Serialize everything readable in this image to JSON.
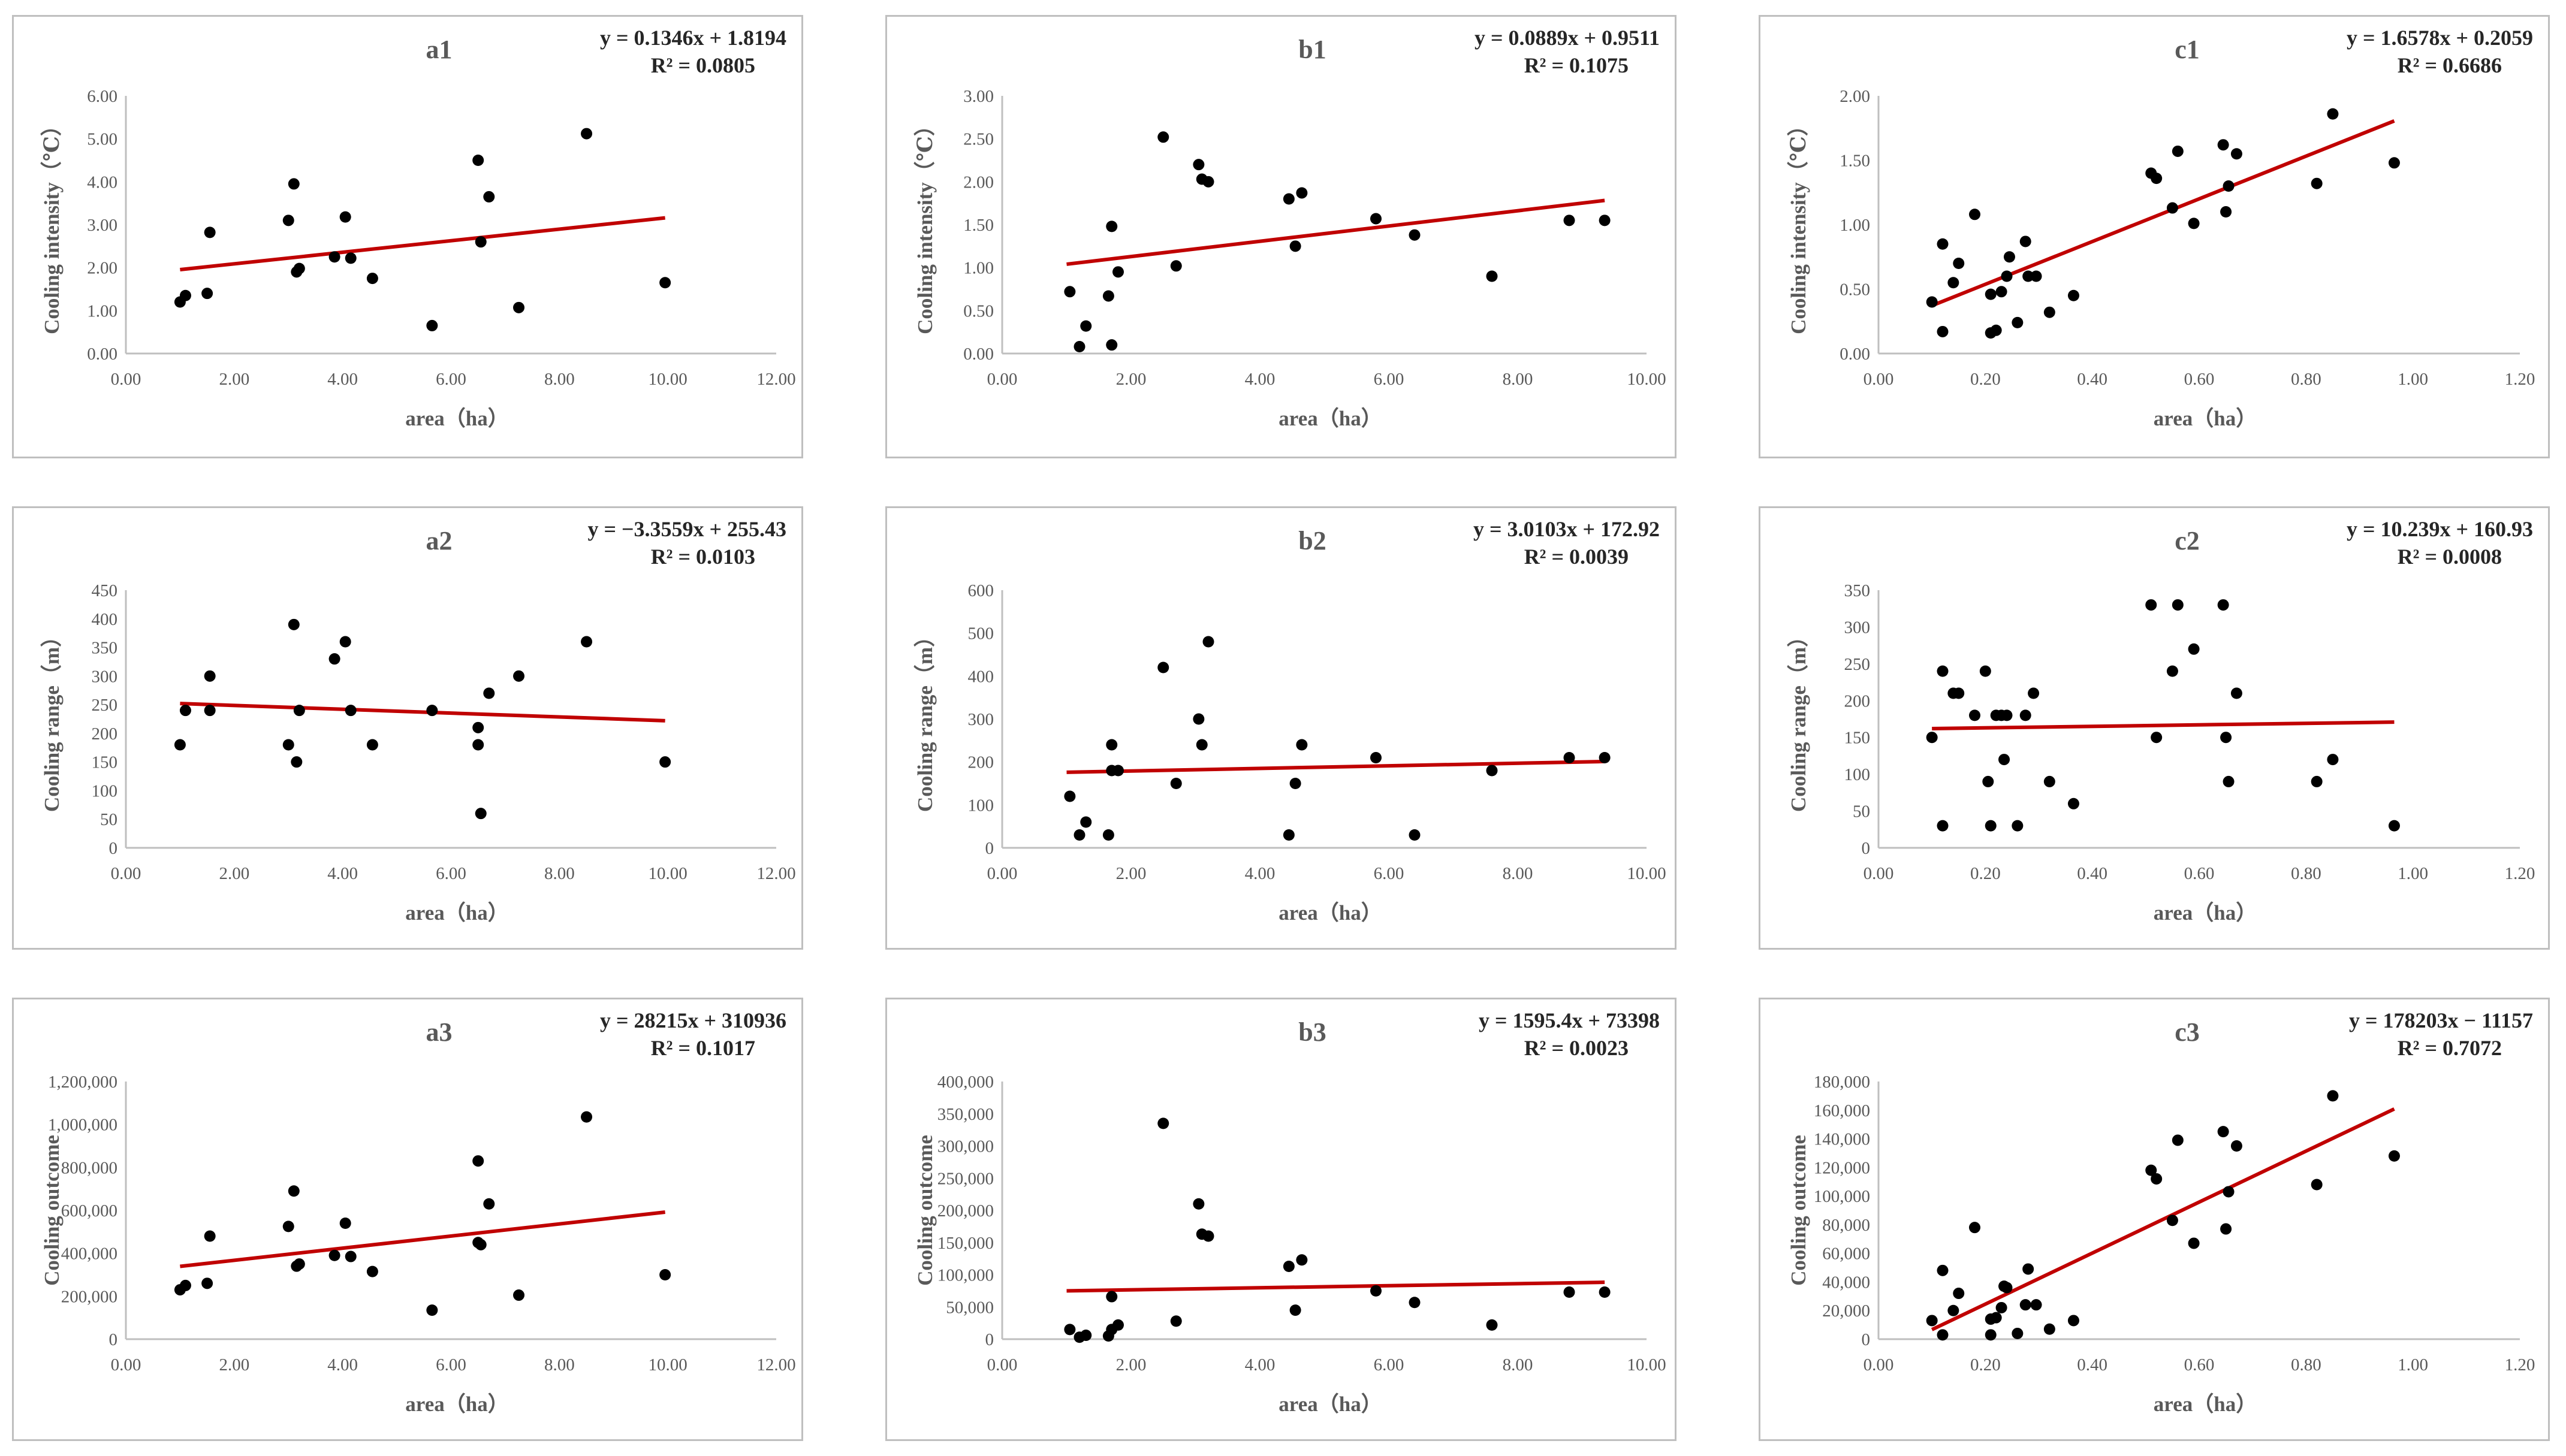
{
  "chart_data": [
    {
      "id": "a1",
      "type": "scatter",
      "title": "a1",
      "equation": "y = 0.1346x + 1.8194",
      "r2": "R² = 0.0805",
      "xlabel": "area（ha）",
      "ylabel": "Cooling intensity（℃）",
      "xlim": [
        0,
        12
      ],
      "ylim": [
        0,
        6
      ],
      "x_ticks": [
        "0.00",
        "2.00",
        "4.00",
        "6.00",
        "8.00",
        "10.00",
        "12.00"
      ],
      "y_ticks": [
        "0.00",
        "1.00",
        "2.00",
        "3.00",
        "4.00",
        "5.00",
        "6.00"
      ],
      "trend": {
        "slope": 0.1346,
        "intercept": 1.8194,
        "x_range": [
          1.0,
          9.95
        ]
      },
      "points": [
        [
          1.0,
          1.2
        ],
        [
          1.1,
          1.35
        ],
        [
          1.5,
          1.4
        ],
        [
          1.55,
          2.82
        ],
        [
          3.0,
          3.1
        ],
        [
          3.1,
          3.95
        ],
        [
          3.15,
          1.9
        ],
        [
          3.2,
          1.98
        ],
        [
          3.85,
          2.25
        ],
        [
          4.05,
          3.18
        ],
        [
          4.15,
          2.22
        ],
        [
          4.55,
          1.75
        ],
        [
          5.65,
          0.65
        ],
        [
          6.5,
          4.5
        ],
        [
          6.55,
          2.6
        ],
        [
          6.7,
          3.65
        ],
        [
          7.25,
          1.07
        ],
        [
          8.5,
          5.12
        ],
        [
          9.95,
          1.65
        ]
      ]
    },
    {
      "id": "b1",
      "type": "scatter",
      "title": "b1",
      "equation": "y = 0.0889x + 0.9511",
      "r2": "R² = 0.1075",
      "xlabel": "area（ha）",
      "ylabel": "Cooling intensity（℃）",
      "xlim": [
        0,
        10
      ],
      "ylim": [
        0,
        3
      ],
      "x_ticks": [
        "0.00",
        "2.00",
        "4.00",
        "6.00",
        "8.00",
        "10.00"
      ],
      "y_ticks": [
        "0.00",
        "0.50",
        "1.00",
        "1.50",
        "2.00",
        "2.50",
        "3.00"
      ],
      "trend": {
        "slope": 0.0889,
        "intercept": 0.9511,
        "x_range": [
          1.0,
          9.35
        ]
      },
      "points": [
        [
          1.05,
          0.72
        ],
        [
          1.2,
          0.08
        ],
        [
          1.3,
          0.32
        ],
        [
          1.65,
          0.67
        ],
        [
          1.7,
          0.1
        ],
        [
          1.7,
          1.48
        ],
        [
          1.8,
          0.95
        ],
        [
          2.5,
          2.52
        ],
        [
          2.7,
          1.02
        ],
        [
          3.05,
          2.2
        ],
        [
          3.1,
          2.03
        ],
        [
          3.2,
          2.0
        ],
        [
          4.45,
          1.8
        ],
        [
          4.55,
          1.25
        ],
        [
          4.65,
          1.87
        ],
        [
          5.8,
          1.57
        ],
        [
          6.4,
          1.38
        ],
        [
          7.6,
          0.9
        ],
        [
          8.8,
          1.55
        ],
        [
          9.35,
          1.55
        ]
      ]
    },
    {
      "id": "c1",
      "type": "scatter",
      "title": "c1",
      "equation": "y = 1.6578x + 0.2059",
      "r2": "R² = 0.6686",
      "xlabel": "area（ha）",
      "ylabel": "Cooling intensity（℃）",
      "xlim": [
        0,
        1.2
      ],
      "ylim": [
        0,
        2
      ],
      "x_ticks": [
        "0.00",
        "0.20",
        "0.40",
        "0.60",
        "0.80",
        "1.00",
        "1.20"
      ],
      "y_ticks": [
        "0.00",
        "0.50",
        "1.00",
        "1.50",
        "2.00"
      ],
      "trend": {
        "slope": 1.6578,
        "intercept": 0.2059,
        "x_range": [
          0.1,
          0.965
        ]
      },
      "points": [
        [
          0.1,
          0.4
        ],
        [
          0.12,
          0.85
        ],
        [
          0.12,
          0.17
        ],
        [
          0.14,
          0.55
        ],
        [
          0.15,
          0.7
        ],
        [
          0.18,
          1.08
        ],
        [
          0.21,
          0.46
        ],
        [
          0.21,
          0.16
        ],
        [
          0.22,
          0.18
        ],
        [
          0.23,
          0.48
        ],
        [
          0.24,
          0.6
        ],
        [
          0.245,
          0.75
        ],
        [
          0.26,
          0.24
        ],
        [
          0.275,
          0.87
        ],
        [
          0.28,
          0.6
        ],
        [
          0.295,
          0.6
        ],
        [
          0.32,
          0.32
        ],
        [
          0.365,
          0.45
        ],
        [
          0.51,
          1.4
        ],
        [
          0.52,
          1.36
        ],
        [
          0.55,
          1.13
        ],
        [
          0.56,
          1.57
        ],
        [
          0.59,
          1.01
        ],
        [
          0.645,
          1.62
        ],
        [
          0.65,
          1.1
        ],
        [
          0.655,
          1.3
        ],
        [
          0.67,
          1.55
        ],
        [
          0.82,
          1.32
        ],
        [
          0.85,
          1.86
        ],
        [
          0.965,
          1.48
        ]
      ]
    },
    {
      "id": "a2",
      "type": "scatter",
      "title": "a2",
      "equation": "y = −3.3559x + 255.43",
      "r2": "R² = 0.0103",
      "xlabel": "area（ha）",
      "ylabel": "Cooling range（m）",
      "xlim": [
        0,
        12
      ],
      "ylim": [
        0,
        450
      ],
      "x_ticks": [
        "0.00",
        "2.00",
        "4.00",
        "6.00",
        "8.00",
        "10.00",
        "12.00"
      ],
      "y_ticks": [
        "0",
        "50",
        "100",
        "150",
        "200",
        "250",
        "300",
        "350",
        "400",
        "450"
      ],
      "trend": {
        "slope": -3.3559,
        "intercept": 255.43,
        "x_range": [
          1.0,
          9.95
        ]
      },
      "points": [
        [
          1.0,
          180
        ],
        [
          1.1,
          240
        ],
        [
          1.55,
          300
        ],
        [
          1.55,
          240
        ],
        [
          3.0,
          180
        ],
        [
          3.1,
          390
        ],
        [
          3.15,
          150
        ],
        [
          3.2,
          240
        ],
        [
          3.85,
          330
        ],
        [
          4.05,
          360
        ],
        [
          4.15,
          240
        ],
        [
          4.55,
          180
        ],
        [
          5.65,
          240
        ],
        [
          6.5,
          210
        ],
        [
          6.5,
          180
        ],
        [
          6.55,
          60
        ],
        [
          6.7,
          270
        ],
        [
          7.25,
          300
        ],
        [
          8.5,
          360
        ],
        [
          9.95,
          150
        ]
      ]
    },
    {
      "id": "b2",
      "type": "scatter",
      "title": "b2",
      "equation": "y = 3.0103x + 172.92",
      "r2": "R² = 0.0039",
      "xlabel": "area（ha）",
      "ylabel": "Cooling range（m）",
      "xlim": [
        0,
        10
      ],
      "ylim": [
        0,
        600
      ],
      "x_ticks": [
        "0.00",
        "2.00",
        "4.00",
        "6.00",
        "8.00",
        "10.00"
      ],
      "y_ticks": [
        "0",
        "100",
        "200",
        "300",
        "400",
        "500",
        "600"
      ],
      "trend": {
        "slope": 3.0103,
        "intercept": 172.92,
        "x_range": [
          1.0,
          9.35
        ]
      },
      "points": [
        [
          1.05,
          120
        ],
        [
          1.2,
          30
        ],
        [
          1.3,
          60
        ],
        [
          1.65,
          30
        ],
        [
          1.7,
          240
        ],
        [
          1.7,
          180
        ],
        [
          1.8,
          180
        ],
        [
          2.5,
          420
        ],
        [
          2.7,
          150
        ],
        [
          3.05,
          300
        ],
        [
          3.1,
          240
        ],
        [
          3.2,
          480
        ],
        [
          4.45,
          30
        ],
        [
          4.55,
          150
        ],
        [
          4.65,
          240
        ],
        [
          5.8,
          210
        ],
        [
          6.4,
          30
        ],
        [
          7.6,
          180
        ],
        [
          8.8,
          210
        ],
        [
          9.35,
          210
        ]
      ]
    },
    {
      "id": "c2",
      "type": "scatter",
      "title": "c2",
      "equation": "y = 10.239x + 160.93",
      "r2": "R² = 0.0008",
      "xlabel": "area（ha）",
      "ylabel": "Cooling range（m）",
      "xlim": [
        0,
        1.2
      ],
      "ylim": [
        0,
        350
      ],
      "x_ticks": [
        "0.00",
        "0.20",
        "0.40",
        "0.60",
        "0.80",
        "1.00",
        "1.20"
      ],
      "y_ticks": [
        "0",
        "50",
        "100",
        "150",
        "200",
        "250",
        "300",
        "350"
      ],
      "trend": {
        "slope": 10.239,
        "intercept": 160.93,
        "x_range": [
          0.1,
          0.965
        ]
      },
      "points": [
        [
          0.1,
          150
        ],
        [
          0.12,
          240
        ],
        [
          0.12,
          30
        ],
        [
          0.14,
          210
        ],
        [
          0.15,
          210
        ],
        [
          0.18,
          180
        ],
        [
          0.2,
          240
        ],
        [
          0.205,
          90
        ],
        [
          0.21,
          30
        ],
        [
          0.22,
          180
        ],
        [
          0.23,
          180
        ],
        [
          0.235,
          120
        ],
        [
          0.24,
          180
        ],
        [
          0.26,
          30
        ],
        [
          0.275,
          180
        ],
        [
          0.29,
          210
        ],
        [
          0.32,
          90
        ],
        [
          0.365,
          60
        ],
        [
          0.51,
          330
        ],
        [
          0.52,
          150
        ],
        [
          0.55,
          240
        ],
        [
          0.56,
          330
        ],
        [
          0.59,
          270
        ],
        [
          0.645,
          330
        ],
        [
          0.65,
          150
        ],
        [
          0.655,
          90
        ],
        [
          0.67,
          210
        ],
        [
          0.82,
          90
        ],
        [
          0.85,
          120
        ],
        [
          0.965,
          30
        ]
      ]
    },
    {
      "id": "a3",
      "type": "scatter",
      "title": "a3",
      "equation": "y = 28215x + 310936",
      "r2": "R² = 0.1017",
      "xlabel": "area（ha）",
      "ylabel": "Cooling outcome",
      "xlim": [
        0,
        12
      ],
      "ylim": [
        0,
        1200000
      ],
      "x_ticks": [
        "0.00",
        "2.00",
        "4.00",
        "6.00",
        "8.00",
        "10.00",
        "12.00"
      ],
      "y_ticks": [
        "0",
        "200,000",
        "400,000",
        "600,000",
        "800,000",
        "1,000,000",
        "1,200,000"
      ],
      "trend": {
        "slope": 28215,
        "intercept": 310936,
        "x_range": [
          1.0,
          9.95
        ]
      },
      "points": [
        [
          1.0,
          230000
        ],
        [
          1.1,
          250000
        ],
        [
          1.5,
          260000
        ],
        [
          1.55,
          480000
        ],
        [
          3.0,
          525000
        ],
        [
          3.1,
          690000
        ],
        [
          3.15,
          340000
        ],
        [
          3.2,
          350000
        ],
        [
          3.85,
          390000
        ],
        [
          4.05,
          540000
        ],
        [
          4.15,
          385000
        ],
        [
          4.55,
          315000
        ],
        [
          5.65,
          135000
        ],
        [
          6.5,
          830000
        ],
        [
          6.5,
          450000
        ],
        [
          6.55,
          440000
        ],
        [
          6.7,
          630000
        ],
        [
          7.25,
          205000
        ],
        [
          8.5,
          1035000
        ],
        [
          9.95,
          300000
        ]
      ]
    },
    {
      "id": "b3",
      "type": "scatter",
      "title": "b3",
      "equation": "y = 1595.4x + 73398",
      "r2": "R² = 0.0023",
      "xlabel": "area（ha）",
      "ylabel": "Cooling outcome",
      "xlim": [
        0,
        10
      ],
      "ylim": [
        0,
        400000
      ],
      "x_ticks": [
        "0.00",
        "2.00",
        "4.00",
        "6.00",
        "8.00",
        "10.00"
      ],
      "y_ticks": [
        "0",
        "50,000",
        "100,000",
        "150,000",
        "200,000",
        "250,000",
        "300,000",
        "350,000",
        "400,000"
      ],
      "trend": {
        "slope": 1595.4,
        "intercept": 73398,
        "x_range": [
          1.0,
          9.35
        ]
      },
      "points": [
        [
          1.05,
          15000
        ],
        [
          1.2,
          3000
        ],
        [
          1.3,
          6000
        ],
        [
          1.65,
          5000
        ],
        [
          1.7,
          15000
        ],
        [
          1.7,
          66000
        ],
        [
          1.8,
          22000
        ],
        [
          2.5,
          335000
        ],
        [
          2.7,
          28000
        ],
        [
          3.05,
          210000
        ],
        [
          3.1,
          163000
        ],
        [
          3.2,
          160000
        ],
        [
          4.45,
          113000
        ],
        [
          4.55,
          45000
        ],
        [
          4.65,
          123000
        ],
        [
          5.8,
          75000
        ],
        [
          6.4,
          57000
        ],
        [
          7.6,
          22000
        ],
        [
          8.8,
          73000
        ],
        [
          9.35,
          73000
        ]
      ]
    },
    {
      "id": "c3",
      "type": "scatter",
      "title": "c3",
      "equation": "y = 178203x − 11157",
      "r2": "R² = 0.7072",
      "xlabel": "area（ha）",
      "ylabel": "Cooling outcome",
      "xlim": [
        0,
        1.2
      ],
      "ylim": [
        0,
        180000
      ],
      "x_ticks": [
        "0.00",
        "0.20",
        "0.40",
        "0.60",
        "0.80",
        "1.00",
        "1.20"
      ],
      "y_ticks": [
        "0",
        "20,000",
        "40,000",
        "60,000",
        "80,000",
        "100,000",
        "120,000",
        "140,000",
        "160,000",
        "180,000"
      ],
      "trend": {
        "slope": 178203,
        "intercept": -11157,
        "x_range": [
          0.1,
          0.965
        ]
      },
      "points": [
        [
          0.1,
          13000
        ],
        [
          0.12,
          48000
        ],
        [
          0.12,
          3000
        ],
        [
          0.14,
          20000
        ],
        [
          0.15,
          32000
        ],
        [
          0.18,
          78000
        ],
        [
          0.21,
          14000
        ],
        [
          0.21,
          3000
        ],
        [
          0.22,
          15000
        ],
        [
          0.23,
          22000
        ],
        [
          0.235,
          37000
        ],
        [
          0.24,
          36000
        ],
        [
          0.26,
          4000
        ],
        [
          0.275,
          24000
        ],
        [
          0.28,
          49000
        ],
        [
          0.295,
          24000
        ],
        [
          0.32,
          7000
        ],
        [
          0.365,
          13000
        ],
        [
          0.51,
          118000
        ],
        [
          0.52,
          112000
        ],
        [
          0.55,
          83000
        ],
        [
          0.56,
          139000
        ],
        [
          0.59,
          67000
        ],
        [
          0.645,
          145000
        ],
        [
          0.65,
          77000
        ],
        [
          0.655,
          103000
        ],
        [
          0.67,
          135000
        ],
        [
          0.82,
          108000
        ],
        [
          0.85,
          170000
        ],
        [
          0.965,
          128000
        ]
      ]
    }
  ]
}
